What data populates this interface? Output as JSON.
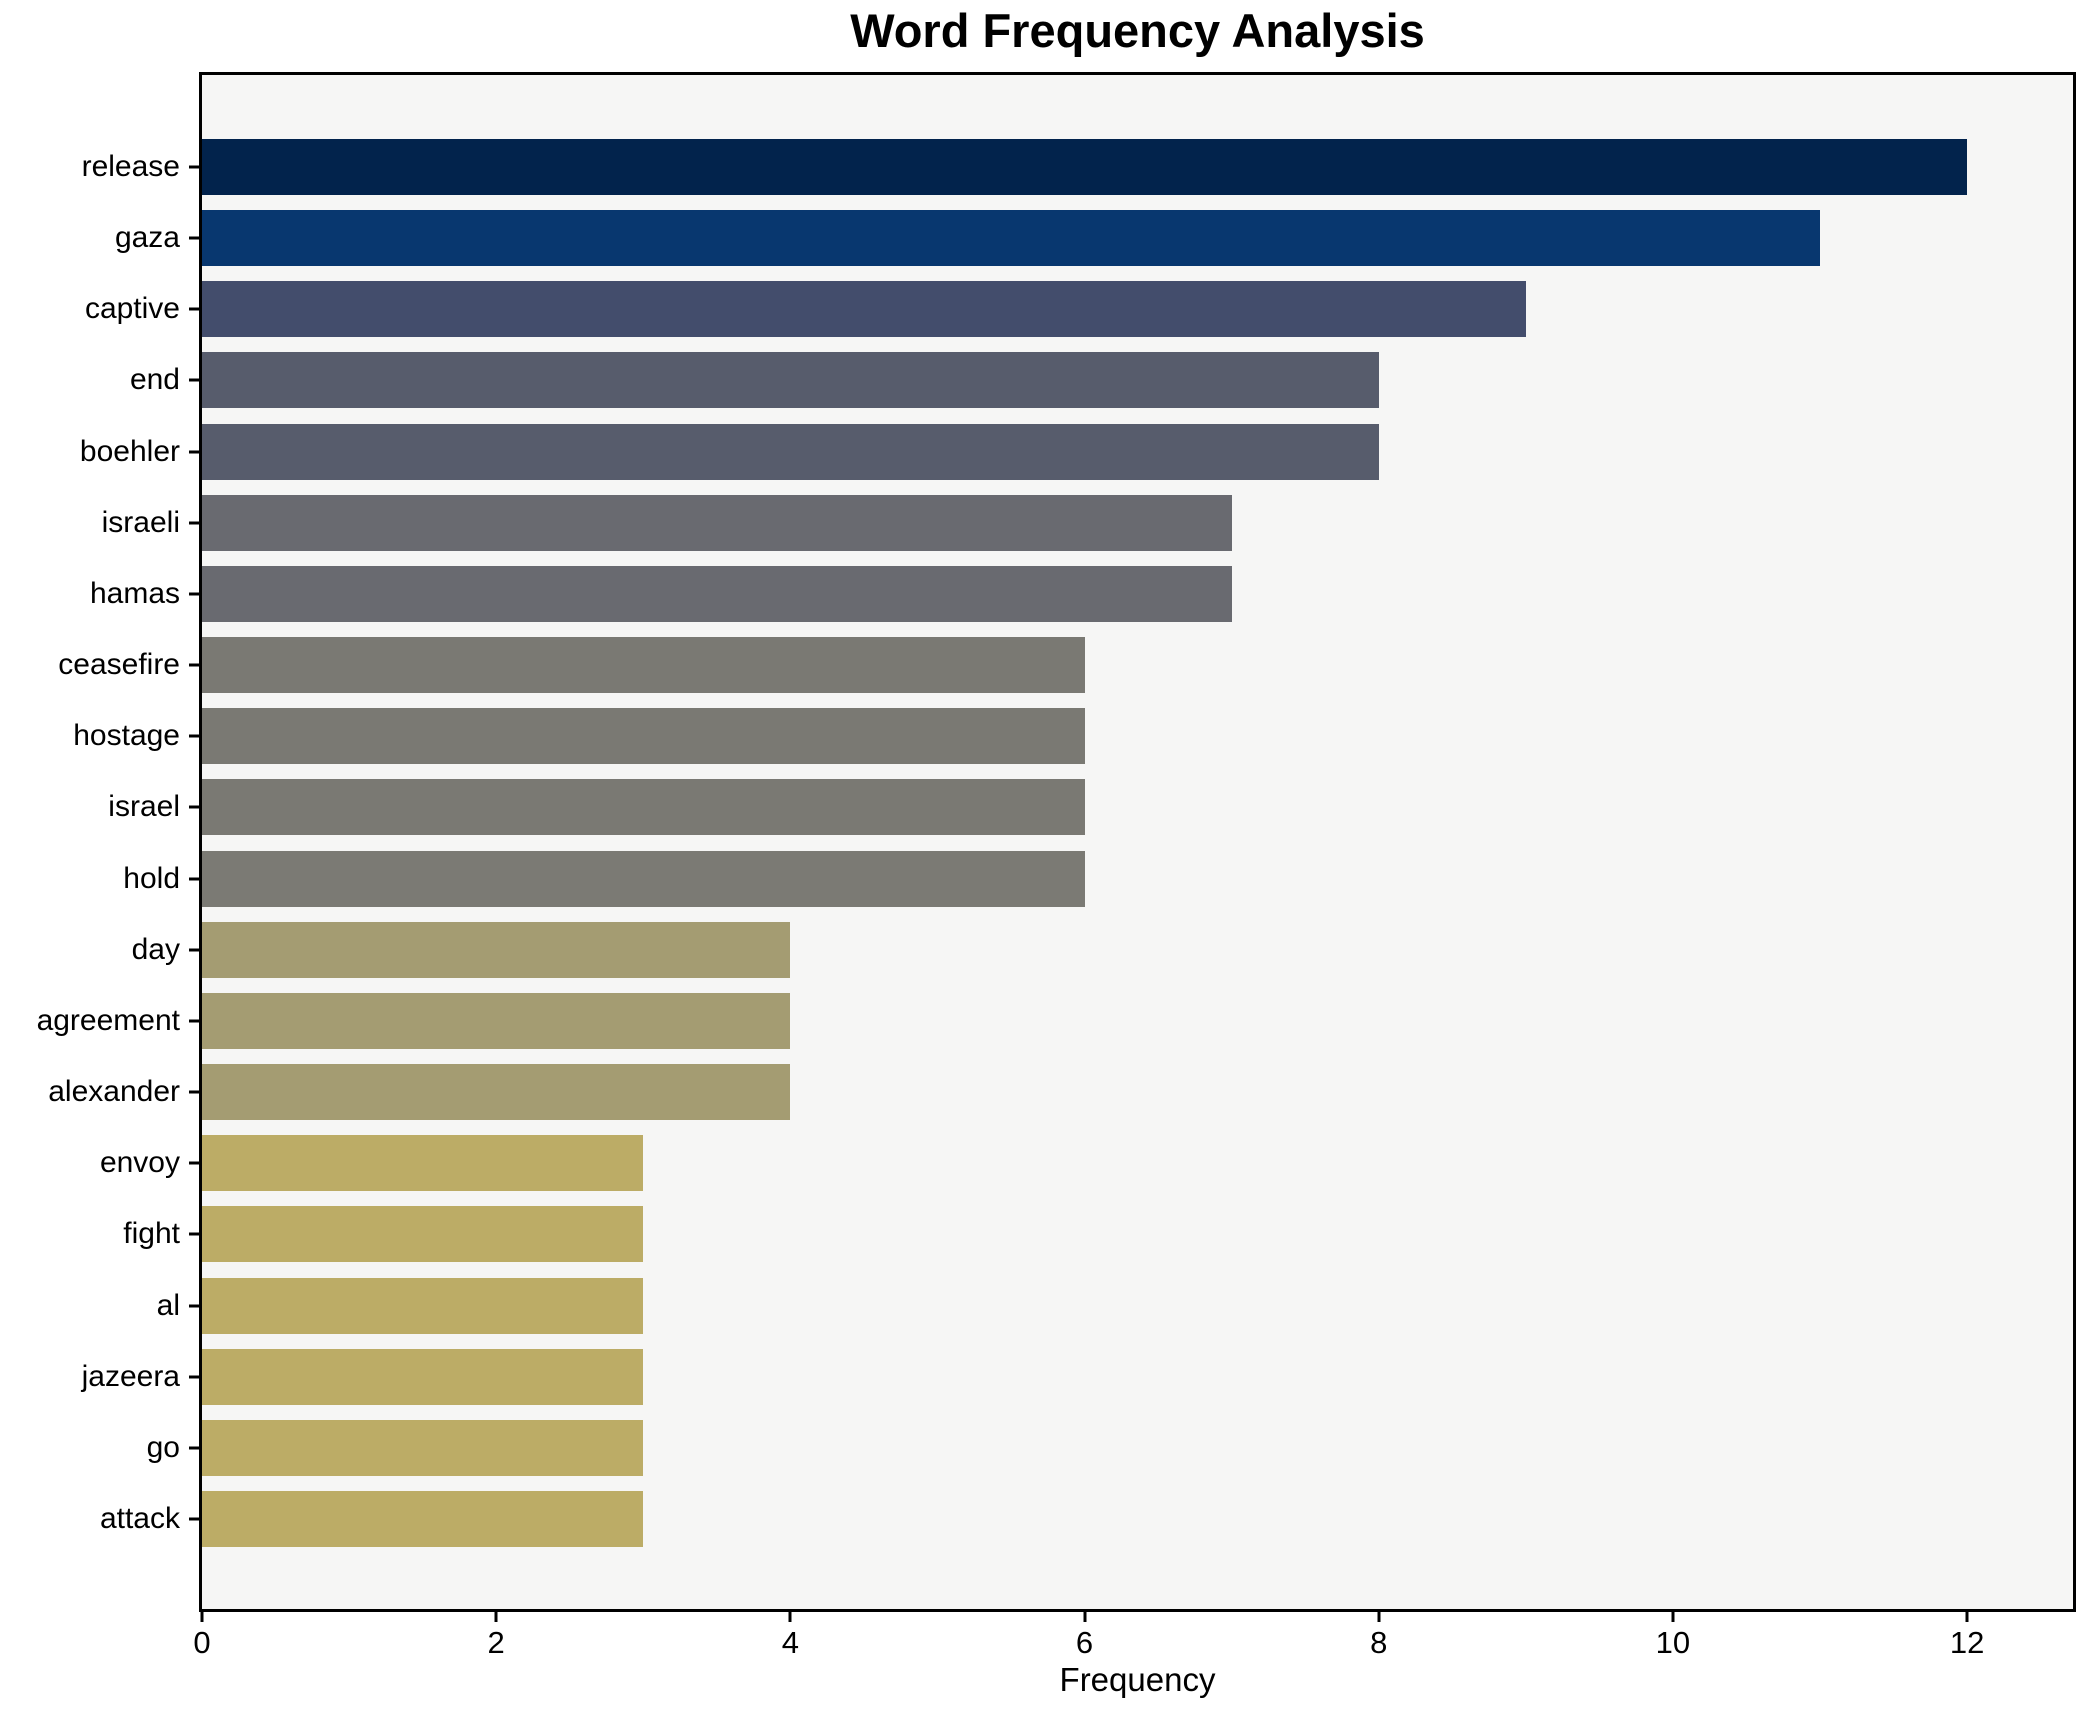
{
  "title": "Word Frequency Analysis",
  "axis": {
    "xlabel": "Frequency",
    "xtick_labels": [
      "0",
      "2",
      "4",
      "6",
      "8",
      "10",
      "12"
    ]
  },
  "colors": {
    "figure_bg": "#ffffff",
    "plot_bg": "#f6f6f5",
    "axis_line": "#000000",
    "text": "#000000"
  },
  "chart_data": {
    "type": "bar",
    "orientation": "horizontal",
    "title": "Word Frequency Analysis",
    "xlabel": "Frequency",
    "ylabel": "",
    "categories": [
      "release",
      "gaza",
      "captive",
      "end",
      "boehler",
      "israeli",
      "hamas",
      "ceasefire",
      "hostage",
      "israel",
      "hold",
      "day",
      "agreement",
      "alexander",
      "envoy",
      "fight",
      "al",
      "jazeera",
      "go",
      "attack"
    ],
    "values": [
      12,
      11,
      9,
      8,
      8,
      7,
      7,
      6,
      6,
      6,
      6,
      4,
      4,
      4,
      3,
      3,
      3,
      3,
      3,
      3
    ],
    "bar_colors": [
      "#02234c",
      "#08376f",
      "#434d6c",
      "#575c6c",
      "#575c6c",
      "#696a70",
      "#696a70",
      "#7a7973",
      "#7a7973",
      "#7a7973",
      "#7b7a74",
      "#a49c72",
      "#a49c72",
      "#a49c72",
      "#bcac66",
      "#bcac66",
      "#bcac66",
      "#bcac66",
      "#bcac66",
      "#bcac66"
    ],
    "xlim": [
      0,
      12.72
    ],
    "xticks": [
      0,
      2,
      4,
      6,
      8,
      10,
      12
    ],
    "grid": false,
    "legend": null
  }
}
